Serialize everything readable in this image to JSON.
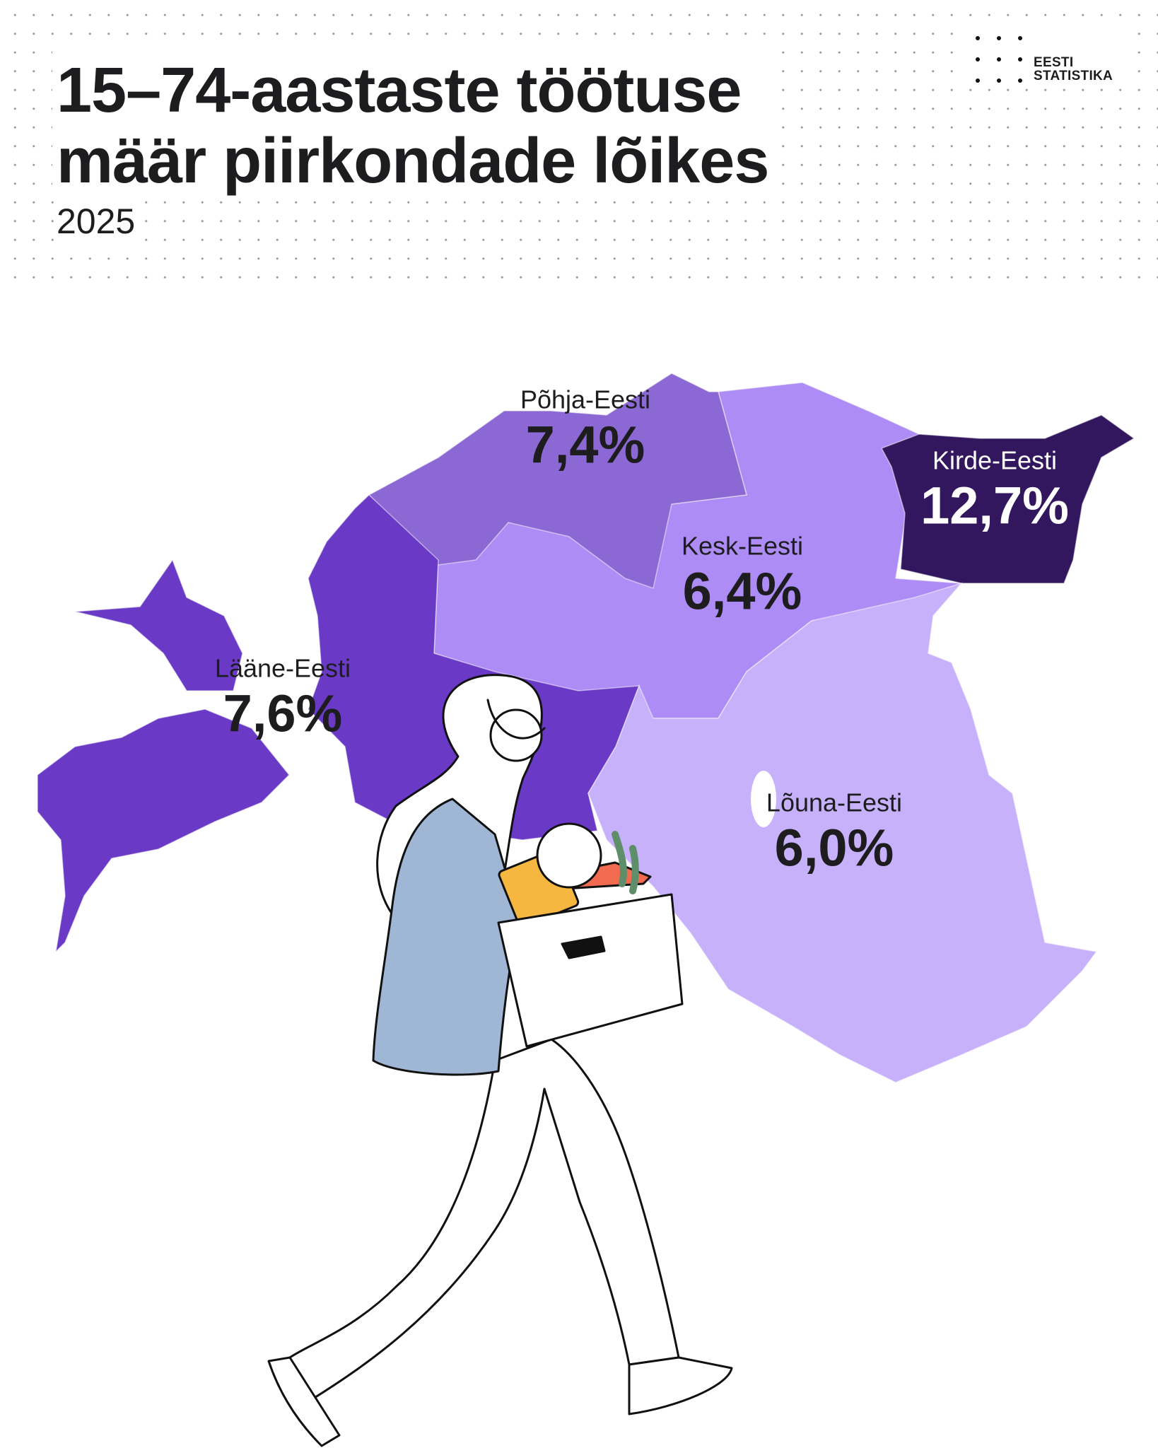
{
  "header": {
    "title_line1": "15–74-aastaste töötuse",
    "title_line2": "määr piirkondade lõikes",
    "year": "2025"
  },
  "logo": {
    "line1": "EESTI",
    "line2": "STATISTIKA"
  },
  "chart_data": {
    "type": "choropleth",
    "title": "15–74-aastaste töötuse määr piirkondade lõikes",
    "subtitle": "2025",
    "unit": "%",
    "regions": [
      {
        "name": "Põhja-Eesti",
        "value": 7.4,
        "label": "7,4%",
        "color": "#8c68d4"
      },
      {
        "name": "Kesk-Eesti",
        "value": 6.4,
        "label": "6,4%",
        "color": "#ae8cf6"
      },
      {
        "name": "Kirde-Eesti",
        "value": 12.7,
        "label": "12,7%",
        "color": "#33175e"
      },
      {
        "name": "Lääne-Eesti",
        "value": 7.6,
        "label": "7,6%",
        "color": "#6a3ac7"
      },
      {
        "name": "Lõuna-Eesti",
        "value": 6.0,
        "label": "6,0%",
        "color": "#c8b1fb"
      }
    ]
  }
}
